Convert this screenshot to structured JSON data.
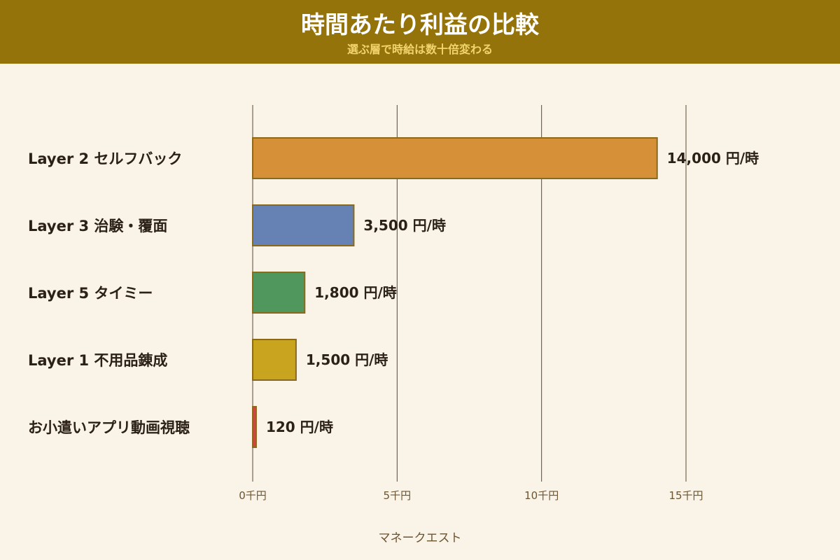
{
  "header": {
    "title": "時間あたり利益の比較",
    "subtitle": "選ぶ層で時給は数十倍変わる"
  },
  "footer": {
    "brand": "マネークエスト"
  },
  "colors": {
    "header_bg": "#94730a",
    "background": "#faf3e8",
    "subtitle": "#f2d46e",
    "bar_border": "#8a6a1a",
    "grid": "#5a4a30"
  },
  "chart_data": {
    "type": "bar",
    "orientation": "horizontal",
    "categories": [
      "Layer 2 セルフバック",
      "Layer 3 治験・覆面",
      "Layer 5 タイミー",
      "Layer 1 不用品錬成",
      "お小遣いアプリ動画視聴"
    ],
    "values": [
      14000,
      3500,
      1800,
      1500,
      120
    ],
    "value_labels": [
      "14,000 円/時",
      "3,500 円/時",
      "1,800 円/時",
      "1,500 円/時",
      "120 円/時"
    ],
    "bar_colors": [
      "#d69138",
      "#6682b5",
      "#4f975c",
      "#c8a41f",
      "#c94a3d"
    ],
    "xlim": [
      0,
      15000
    ],
    "xticks": [
      0,
      5000,
      10000,
      15000
    ],
    "xtick_labels": [
      "0千円",
      "5千円",
      "10千円",
      "15千円"
    ],
    "xlabel": "",
    "ylabel": "",
    "grid": true,
    "legend": "none"
  }
}
